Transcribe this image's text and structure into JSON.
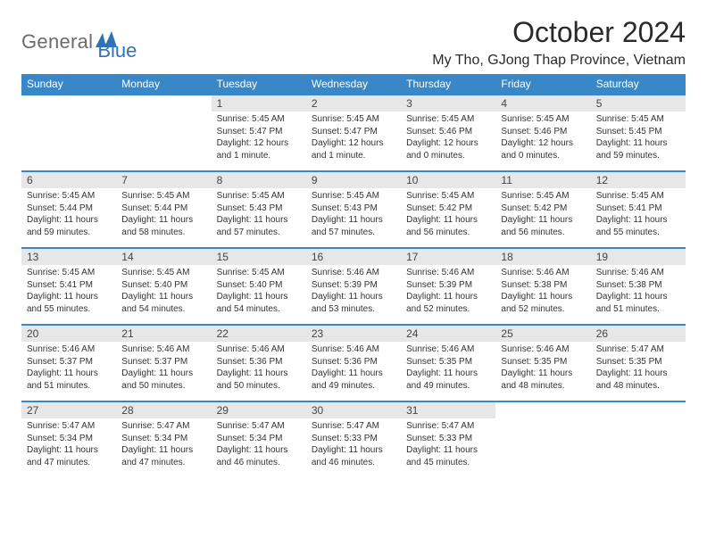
{
  "logo": {
    "text_general": "General",
    "text_blue": "Blue"
  },
  "header": {
    "month_title": "October 2024",
    "location": "My Tho, GJong Thap Province, Vietnam"
  },
  "colors": {
    "header_bg": "#3a87c7",
    "header_text": "#ffffff",
    "daynum_bg": "#e7e7e7",
    "border": "#3a87c7",
    "page_bg": "#ffffff",
    "logo_gray": "#6b6b6b",
    "logo_blue": "#2f72b5"
  },
  "weekdays": [
    "Sunday",
    "Monday",
    "Tuesday",
    "Wednesday",
    "Thursday",
    "Friday",
    "Saturday"
  ],
  "weeks": [
    {
      "nums": [
        "",
        "",
        "1",
        "2",
        "3",
        "4",
        "5"
      ],
      "cells": [
        {
          "sunrise": "",
          "sunset": "",
          "daylight": ""
        },
        {
          "sunrise": "",
          "sunset": "",
          "daylight": ""
        },
        {
          "sunrise": "Sunrise: 5:45 AM",
          "sunset": "Sunset: 5:47 PM",
          "daylight": "Daylight: 12 hours and 1 minute."
        },
        {
          "sunrise": "Sunrise: 5:45 AM",
          "sunset": "Sunset: 5:47 PM",
          "daylight": "Daylight: 12 hours and 1 minute."
        },
        {
          "sunrise": "Sunrise: 5:45 AM",
          "sunset": "Sunset: 5:46 PM",
          "daylight": "Daylight: 12 hours and 0 minutes."
        },
        {
          "sunrise": "Sunrise: 5:45 AM",
          "sunset": "Sunset: 5:46 PM",
          "daylight": "Daylight: 12 hours and 0 minutes."
        },
        {
          "sunrise": "Sunrise: 5:45 AM",
          "sunset": "Sunset: 5:45 PM",
          "daylight": "Daylight: 11 hours and 59 minutes."
        }
      ]
    },
    {
      "nums": [
        "6",
        "7",
        "8",
        "9",
        "10",
        "11",
        "12"
      ],
      "cells": [
        {
          "sunrise": "Sunrise: 5:45 AM",
          "sunset": "Sunset: 5:44 PM",
          "daylight": "Daylight: 11 hours and 59 minutes."
        },
        {
          "sunrise": "Sunrise: 5:45 AM",
          "sunset": "Sunset: 5:44 PM",
          "daylight": "Daylight: 11 hours and 58 minutes."
        },
        {
          "sunrise": "Sunrise: 5:45 AM",
          "sunset": "Sunset: 5:43 PM",
          "daylight": "Daylight: 11 hours and 57 minutes."
        },
        {
          "sunrise": "Sunrise: 5:45 AM",
          "sunset": "Sunset: 5:43 PM",
          "daylight": "Daylight: 11 hours and 57 minutes."
        },
        {
          "sunrise": "Sunrise: 5:45 AM",
          "sunset": "Sunset: 5:42 PM",
          "daylight": "Daylight: 11 hours and 56 minutes."
        },
        {
          "sunrise": "Sunrise: 5:45 AM",
          "sunset": "Sunset: 5:42 PM",
          "daylight": "Daylight: 11 hours and 56 minutes."
        },
        {
          "sunrise": "Sunrise: 5:45 AM",
          "sunset": "Sunset: 5:41 PM",
          "daylight": "Daylight: 11 hours and 55 minutes."
        }
      ]
    },
    {
      "nums": [
        "13",
        "14",
        "15",
        "16",
        "17",
        "18",
        "19"
      ],
      "cells": [
        {
          "sunrise": "Sunrise: 5:45 AM",
          "sunset": "Sunset: 5:41 PM",
          "daylight": "Daylight: 11 hours and 55 minutes."
        },
        {
          "sunrise": "Sunrise: 5:45 AM",
          "sunset": "Sunset: 5:40 PM",
          "daylight": "Daylight: 11 hours and 54 minutes."
        },
        {
          "sunrise": "Sunrise: 5:45 AM",
          "sunset": "Sunset: 5:40 PM",
          "daylight": "Daylight: 11 hours and 54 minutes."
        },
        {
          "sunrise": "Sunrise: 5:46 AM",
          "sunset": "Sunset: 5:39 PM",
          "daylight": "Daylight: 11 hours and 53 minutes."
        },
        {
          "sunrise": "Sunrise: 5:46 AM",
          "sunset": "Sunset: 5:39 PM",
          "daylight": "Daylight: 11 hours and 52 minutes."
        },
        {
          "sunrise": "Sunrise: 5:46 AM",
          "sunset": "Sunset: 5:38 PM",
          "daylight": "Daylight: 11 hours and 52 minutes."
        },
        {
          "sunrise": "Sunrise: 5:46 AM",
          "sunset": "Sunset: 5:38 PM",
          "daylight": "Daylight: 11 hours and 51 minutes."
        }
      ]
    },
    {
      "nums": [
        "20",
        "21",
        "22",
        "23",
        "24",
        "25",
        "26"
      ],
      "cells": [
        {
          "sunrise": "Sunrise: 5:46 AM",
          "sunset": "Sunset: 5:37 PM",
          "daylight": "Daylight: 11 hours and 51 minutes."
        },
        {
          "sunrise": "Sunrise: 5:46 AM",
          "sunset": "Sunset: 5:37 PM",
          "daylight": "Daylight: 11 hours and 50 minutes."
        },
        {
          "sunrise": "Sunrise: 5:46 AM",
          "sunset": "Sunset: 5:36 PM",
          "daylight": "Daylight: 11 hours and 50 minutes."
        },
        {
          "sunrise": "Sunrise: 5:46 AM",
          "sunset": "Sunset: 5:36 PM",
          "daylight": "Daylight: 11 hours and 49 minutes."
        },
        {
          "sunrise": "Sunrise: 5:46 AM",
          "sunset": "Sunset: 5:35 PM",
          "daylight": "Daylight: 11 hours and 49 minutes."
        },
        {
          "sunrise": "Sunrise: 5:46 AM",
          "sunset": "Sunset: 5:35 PM",
          "daylight": "Daylight: 11 hours and 48 minutes."
        },
        {
          "sunrise": "Sunrise: 5:47 AM",
          "sunset": "Sunset: 5:35 PM",
          "daylight": "Daylight: 11 hours and 48 minutes."
        }
      ]
    },
    {
      "nums": [
        "27",
        "28",
        "29",
        "30",
        "31",
        "",
        ""
      ],
      "cells": [
        {
          "sunrise": "Sunrise: 5:47 AM",
          "sunset": "Sunset: 5:34 PM",
          "daylight": "Daylight: 11 hours and 47 minutes."
        },
        {
          "sunrise": "Sunrise: 5:47 AM",
          "sunset": "Sunset: 5:34 PM",
          "daylight": "Daylight: 11 hours and 47 minutes."
        },
        {
          "sunrise": "Sunrise: 5:47 AM",
          "sunset": "Sunset: 5:34 PM",
          "daylight": "Daylight: 11 hours and 46 minutes."
        },
        {
          "sunrise": "Sunrise: 5:47 AM",
          "sunset": "Sunset: 5:33 PM",
          "daylight": "Daylight: 11 hours and 46 minutes."
        },
        {
          "sunrise": "Sunrise: 5:47 AM",
          "sunset": "Sunset: 5:33 PM",
          "daylight": "Daylight: 11 hours and 45 minutes."
        },
        {
          "sunrise": "",
          "sunset": "",
          "daylight": ""
        },
        {
          "sunrise": "",
          "sunset": "",
          "daylight": ""
        }
      ]
    }
  ]
}
